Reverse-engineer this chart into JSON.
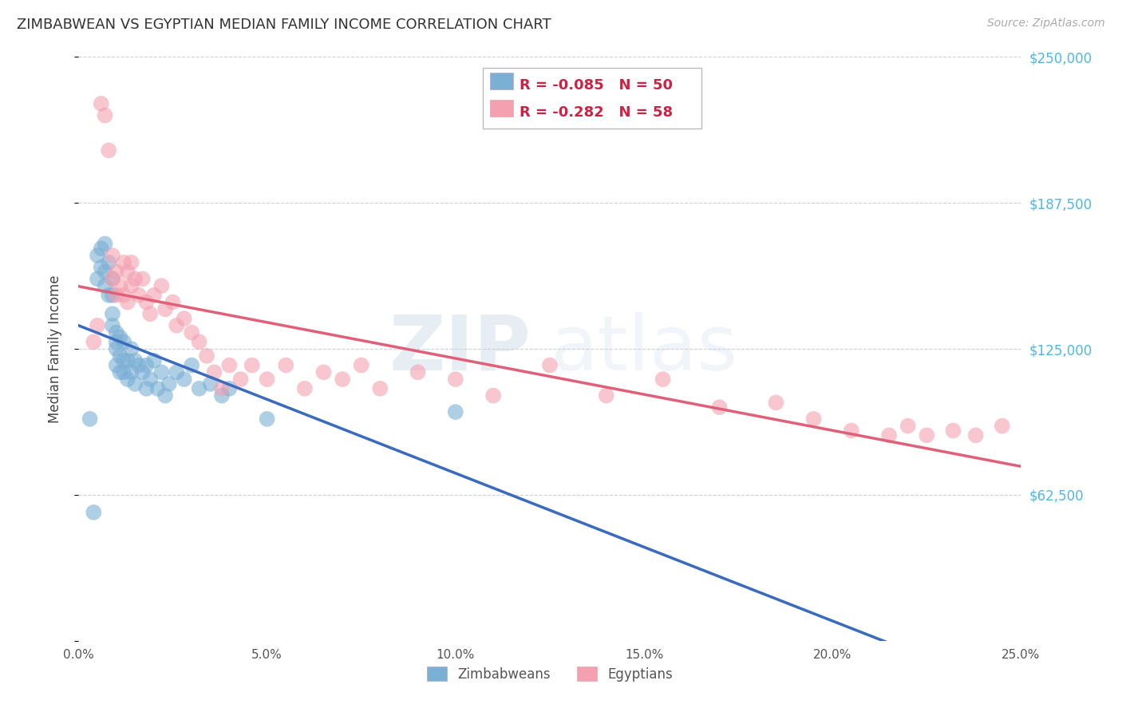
{
  "title": "ZIMBABWEAN VS EGYPTIAN MEDIAN FAMILY INCOME CORRELATION CHART",
  "source": "Source: ZipAtlas.com",
  "ylabel": "Median Family Income",
  "xlabel_ticks": [
    "0.0%",
    "5.0%",
    "10.0%",
    "15.0%",
    "20.0%",
    "25.0%"
  ],
  "xlabel_vals": [
    0.0,
    0.05,
    0.1,
    0.15,
    0.2,
    0.25
  ],
  "ylim": [
    0,
    250000
  ],
  "xlim": [
    0.0,
    0.25
  ],
  "yticks": [
    0,
    62500,
    125000,
    187500,
    250000
  ],
  "ytick_labels": [
    "",
    "$62,500",
    "$125,000",
    "$187,500",
    "$250,000"
  ],
  "grid_color": "#cccccc",
  "bg_color": "#ffffff",
  "watermark_zip": "ZIP",
  "watermark_atlas": "atlas",
  "legend_blue_r": "-0.085",
  "legend_blue_n": "50",
  "legend_pink_r": "-0.282",
  "legend_pink_n": "58",
  "blue_color": "#7bafd4",
  "pink_color": "#f4a0b0",
  "blue_line_color": "#3a6bbf",
  "pink_line_color": "#e0607a",
  "zimbabwean_x": [
    0.003,
    0.004,
    0.005,
    0.005,
    0.006,
    0.006,
    0.007,
    0.007,
    0.007,
    0.008,
    0.008,
    0.009,
    0.009,
    0.009,
    0.009,
    0.01,
    0.01,
    0.01,
    0.01,
    0.011,
    0.011,
    0.011,
    0.012,
    0.012,
    0.012,
    0.013,
    0.013,
    0.014,
    0.014,
    0.015,
    0.015,
    0.016,
    0.017,
    0.018,
    0.018,
    0.019,
    0.02,
    0.021,
    0.022,
    0.023,
    0.024,
    0.026,
    0.028,
    0.03,
    0.032,
    0.035,
    0.038,
    0.04,
    0.05,
    0.1
  ],
  "zimbabwean_y": [
    95000,
    55000,
    165000,
    155000,
    168000,
    160000,
    170000,
    158000,
    152000,
    162000,
    148000,
    155000,
    148000,
    140000,
    135000,
    132000,
    128000,
    125000,
    118000,
    130000,
    122000,
    115000,
    128000,
    120000,
    115000,
    120000,
    112000,
    125000,
    115000,
    120000,
    110000,
    118000,
    115000,
    118000,
    108000,
    112000,
    120000,
    108000,
    115000,
    105000,
    110000,
    115000,
    112000,
    118000,
    108000,
    110000,
    105000,
    108000,
    95000,
    98000
  ],
  "egyptian_x": [
    0.004,
    0.005,
    0.006,
    0.007,
    0.008,
    0.009,
    0.009,
    0.01,
    0.01,
    0.011,
    0.012,
    0.012,
    0.013,
    0.013,
    0.014,
    0.014,
    0.015,
    0.016,
    0.017,
    0.018,
    0.019,
    0.02,
    0.022,
    0.023,
    0.025,
    0.026,
    0.028,
    0.03,
    0.032,
    0.034,
    0.036,
    0.038,
    0.04,
    0.043,
    0.046,
    0.05,
    0.055,
    0.06,
    0.065,
    0.07,
    0.075,
    0.08,
    0.09,
    0.1,
    0.11,
    0.125,
    0.14,
    0.155,
    0.17,
    0.185,
    0.195,
    0.205,
    0.215,
    0.22,
    0.225,
    0.232,
    0.238,
    0.245
  ],
  "egyptian_y": [
    128000,
    135000,
    230000,
    225000,
    210000,
    165000,
    155000,
    158000,
    148000,
    152000,
    162000,
    148000,
    158000,
    145000,
    162000,
    152000,
    155000,
    148000,
    155000,
    145000,
    140000,
    148000,
    152000,
    142000,
    145000,
    135000,
    138000,
    132000,
    128000,
    122000,
    115000,
    108000,
    118000,
    112000,
    118000,
    112000,
    118000,
    108000,
    115000,
    112000,
    118000,
    108000,
    115000,
    112000,
    105000,
    118000,
    105000,
    112000,
    100000,
    102000,
    95000,
    90000,
    88000,
    92000,
    88000,
    90000,
    88000,
    92000
  ]
}
